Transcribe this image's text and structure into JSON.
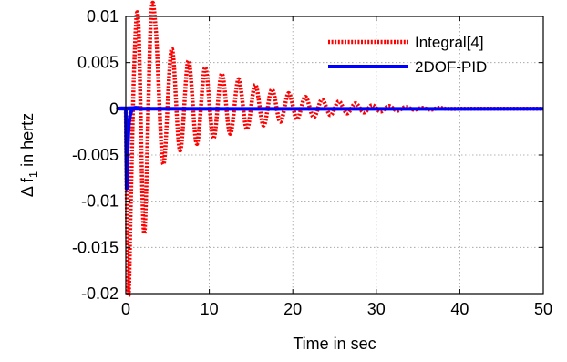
{
  "chart_data": {
    "type": "line",
    "title": "",
    "xlabel": "Time in sec",
    "ylabel": "Δ f",
    "ylabel_subscript": "1",
    "ylabel_suffix": " in hertz",
    "xlim": [
      0,
      50
    ],
    "ylim": [
      -0.02,
      0.01
    ],
    "x_ticks": [
      0,
      10,
      20,
      30,
      40,
      50
    ],
    "x_tick_labels": [
      "0",
      "10",
      "20",
      "30",
      "40",
      "50"
    ],
    "y_ticks": [
      -0.02,
      -0.015,
      -0.01,
      -0.005,
      0,
      0.005,
      0.01
    ],
    "y_tick_labels": [
      "-0.02",
      "-0.015",
      "-0.01",
      "-0.005",
      "0",
      "0.005",
      "0.01"
    ],
    "grid": true,
    "legend_position": "top-right",
    "series": [
      {
        "name": "Integral[4]",
        "color": "#ff0000",
        "style": "dotted",
        "x": [
          0,
          0.3,
          0.6,
          1.0,
          1.5,
          2.2,
          3.0,
          3.6,
          4.5,
          5.5,
          6.5,
          7.5,
          8.5,
          9.5,
          10.5,
          11.5,
          12.5,
          13.5,
          14.5,
          15.5,
          16.5,
          17.5,
          18.5,
          19.5,
          20.5,
          21.5,
          22.5,
          23.5,
          24.5,
          25.5,
          26.5,
          27.5,
          28.5,
          29.5,
          30.5,
          31.5,
          32.5,
          33.5,
          34.5,
          35.5,
          36.5,
          37.5,
          38.5,
          40,
          45,
          50
        ],
        "y": [
          0,
          -0.02,
          -0.01,
          0.0045,
          0.0095,
          -0.0135,
          0.0095,
          0.0085,
          -0.006,
          0.0065,
          -0.0045,
          0.0052,
          -0.0038,
          0.0045,
          -0.0032,
          0.0038,
          -0.0027,
          0.0032,
          -0.0022,
          0.0026,
          -0.0018,
          0.0021,
          -0.0014,
          0.0017,
          -0.0011,
          0.0013,
          -0.0009,
          0.001,
          -0.0007,
          0.0008,
          -0.0005,
          0.0006,
          -0.0004,
          0.0004,
          -0.0003,
          0.0003,
          -0.0002,
          0.0002,
          -0.0001,
          0.0001,
          -0.0001,
          0.0001,
          0,
          0,
          0,
          0
        ]
      },
      {
        "name": "2DOF-PID",
        "color": "#0000ff",
        "style": "solid",
        "x": [
          0,
          0.1,
          0.2,
          0.35,
          0.5,
          0.7,
          1.0,
          1.5,
          3,
          50
        ],
        "y": [
          0,
          -0.0085,
          -0.005,
          -0.002,
          -0.0008,
          -0.0002,
          0.0001,
          0.0001,
          0,
          0
        ]
      }
    ]
  }
}
